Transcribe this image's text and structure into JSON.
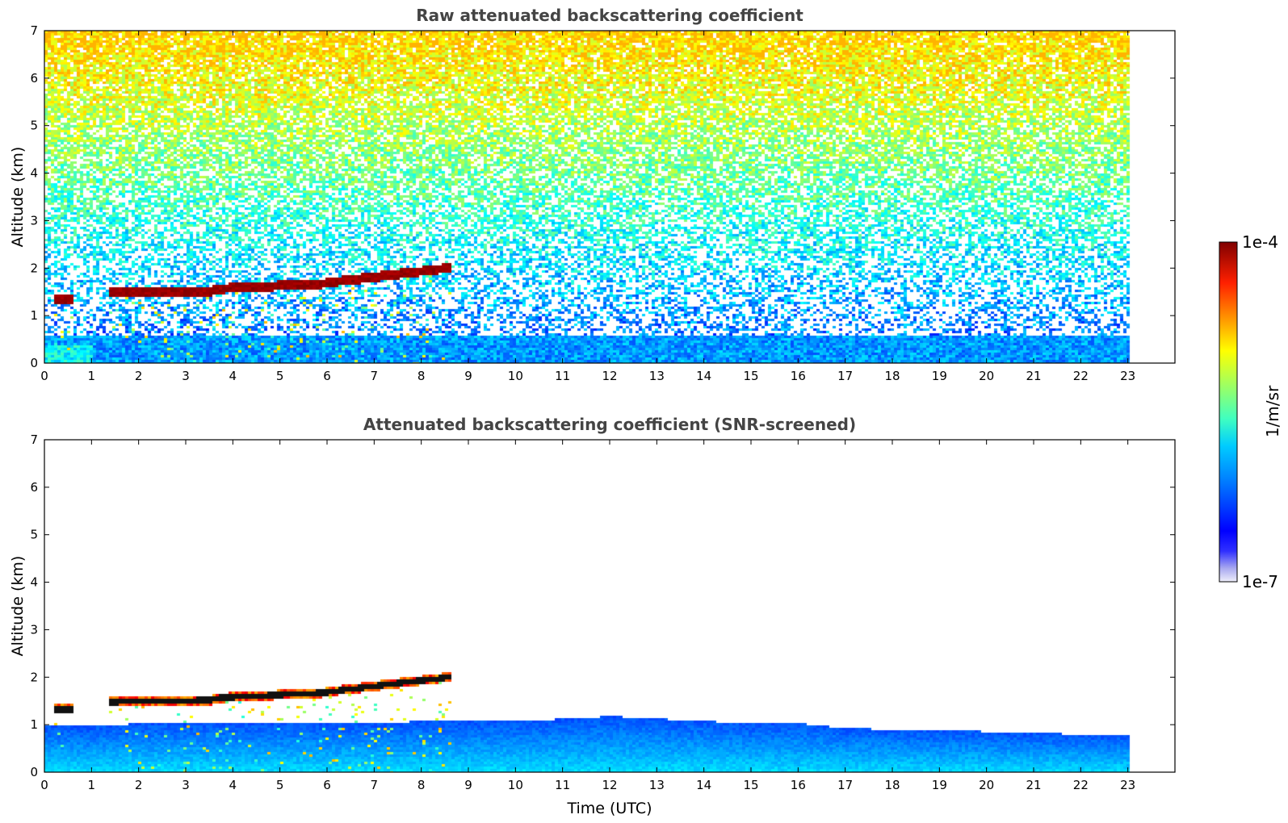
{
  "chart_data": [
    {
      "type": "heatmap",
      "title": "Raw attenuated backscattering coefficient",
      "xlabel": "",
      "ylabel": "Altitude (km)",
      "xlim": [
        0,
        24
      ],
      "ylim": [
        0,
        7
      ],
      "x_ticks": [
        "0",
        "1",
        "2",
        "3",
        "4",
        "5",
        "6",
        "7",
        "8",
        "9",
        "10",
        "11",
        "12",
        "13",
        "14",
        "15",
        "16",
        "17",
        "18",
        "19",
        "20",
        "21",
        "22",
        "23"
      ],
      "y_ticks": [
        "0",
        "1",
        "2",
        "3",
        "4",
        "5",
        "6",
        "7"
      ],
      "data_end_time": 23,
      "grid": false,
      "layers": [
        {
          "feature": "cloud base",
          "x": [
            0.2,
            0.55
          ],
          "y": [
            1.25,
            1.45
          ],
          "level": "high"
        },
        {
          "feature": "cloud layer",
          "x": [
            1.35,
            3.5
          ],
          "y": [
            1.45,
            1.6
          ],
          "level": "high"
        },
        {
          "feature": "cloud layer",
          "x": [
            3.5,
            6.0
          ],
          "y": [
            1.55,
            1.75
          ],
          "level": "high"
        },
        {
          "feature": "cloud layer",
          "x": [
            6.0,
            8.6
          ],
          "y": [
            1.75,
            2.05
          ],
          "level": "high"
        },
        {
          "feature": "boundary layer aerosol",
          "x": [
            0,
            23
          ],
          "y": [
            0,
            0.6
          ],
          "level": "low-medium"
        },
        {
          "feature": "noise",
          "x": [
            0,
            23
          ],
          "y": [
            0.6,
            7
          ],
          "level": "noisy, increasing with altitude"
        }
      ]
    },
    {
      "type": "heatmap",
      "title": "Attenuated backscattering coefficient (SNR-screened)",
      "xlabel": "Time (UTC)",
      "ylabel": "Altitude (km)",
      "xlim": [
        0,
        24
      ],
      "ylim": [
        0,
        7
      ],
      "x_ticks": [
        "0",
        "1",
        "2",
        "3",
        "4",
        "5",
        "6",
        "7",
        "8",
        "9",
        "10",
        "11",
        "12",
        "13",
        "14",
        "15",
        "16",
        "17",
        "18",
        "19",
        "20",
        "21",
        "22",
        "23"
      ],
      "y_ticks": [
        "0",
        "1",
        "2",
        "3",
        "4",
        "5",
        "6",
        "7"
      ],
      "data_end_time": 23,
      "grid": false,
      "boundary_layer_top_km": [
        [
          0,
          1.0
        ],
        [
          1,
          1.0
        ],
        [
          2,
          1.05
        ],
        [
          3,
          1.05
        ],
        [
          4,
          1.05
        ],
        [
          5,
          1.05
        ],
        [
          6,
          1.05
        ],
        [
          7,
          1.05
        ],
        [
          8,
          1.1
        ],
        [
          9,
          1.1
        ],
        [
          10,
          1.1
        ],
        [
          11,
          1.15
        ],
        [
          12,
          1.2
        ],
        [
          13,
          1.15
        ],
        [
          14,
          1.1
        ],
        [
          15,
          1.05
        ],
        [
          16,
          1.05
        ],
        [
          17,
          0.95
        ],
        [
          18,
          0.92
        ],
        [
          19,
          0.9
        ],
        [
          20,
          0.88
        ],
        [
          21,
          0.85
        ],
        [
          22,
          0.82
        ],
        [
          23,
          0.8
        ]
      ]
    }
  ],
  "colorbar": {
    "max_label": "1e-4",
    "min_label": "1e-7",
    "unit_label": "1/m/sr",
    "colormap": "jet"
  }
}
